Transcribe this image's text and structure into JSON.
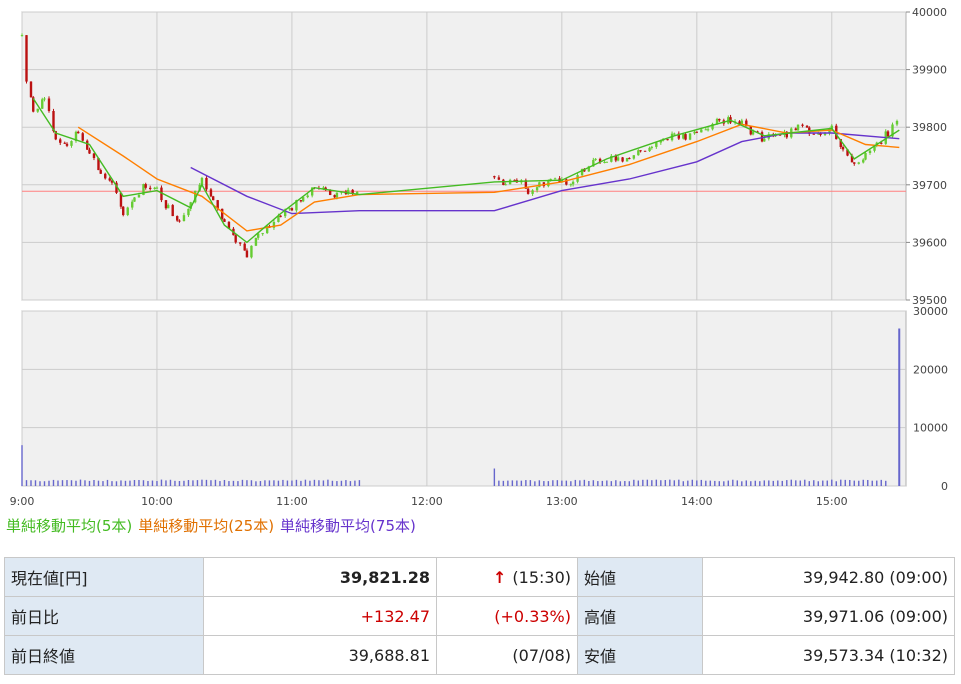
{
  "chart_data": [
    {
      "type": "candlestick-line",
      "y_range": [
        39500,
        40000
      ],
      "y_ticks": [
        "40000",
        "39900",
        "39800",
        "39700",
        "39600",
        "39500"
      ],
      "x_ticks": [
        "9:00",
        "10:00",
        "11:00",
        "12:00",
        "13:00",
        "14:00",
        "15:00"
      ],
      "reference_line": 39688.81,
      "price_path": [
        [
          "9:00",
          39960
        ],
        [
          "9:02",
          39880
        ],
        [
          "9:05",
          39830
        ],
        [
          "9:10",
          39850
        ],
        [
          "9:15",
          39780
        ],
        [
          "9:20",
          39770
        ],
        [
          "9:25",
          39790
        ],
        [
          "9:30",
          39760
        ],
        [
          "9:35",
          39720
        ],
        [
          "9:40",
          39700
        ],
        [
          "9:45",
          39650
        ],
        [
          "9:50",
          39680
        ],
        [
          "9:55",
          39700
        ],
        [
          "10:00",
          39690
        ],
        [
          "10:05",
          39660
        ],
        [
          "10:10",
          39640
        ],
        [
          "10:15",
          39670
        ],
        [
          "10:20",
          39710
        ],
        [
          "10:25",
          39680
        ],
        [
          "10:30",
          39630
        ],
        [
          "10:35",
          39600
        ],
        [
          "10:40",
          39580
        ],
        [
          "10:45",
          39610
        ],
        [
          "10:50",
          39630
        ],
        [
          "10:55",
          39650
        ],
        [
          "11:00",
          39660
        ],
        [
          "11:05",
          39680
        ],
        [
          "11:10",
          39700
        ],
        [
          "11:15",
          39690
        ],
        [
          "11:20",
          39680
        ],
        [
          "11:25",
          39690
        ],
        [
          "11:30",
          39680
        ],
        [
          "12:30",
          39710
        ],
        [
          "12:35",
          39700
        ],
        [
          "12:40",
          39710
        ],
        [
          "12:45",
          39690
        ],
        [
          "12:50",
          39700
        ],
        [
          "12:55",
          39710
        ],
        [
          "13:00",
          39710
        ],
        [
          "13:05",
          39700
        ],
        [
          "13:10",
          39730
        ],
        [
          "13:15",
          39750
        ],
        [
          "13:20",
          39740
        ],
        [
          "13:25",
          39750
        ],
        [
          "13:30",
          39740
        ],
        [
          "13:35",
          39760
        ],
        [
          "13:40",
          39770
        ],
        [
          "13:45",
          39780
        ],
        [
          "13:50",
          39790
        ],
        [
          "13:55",
          39780
        ],
        [
          "14:00",
          39790
        ],
        [
          "14:05",
          39800
        ],
        [
          "14:10",
          39810
        ],
        [
          "14:15",
          39815
        ],
        [
          "14:20",
          39810
        ],
        [
          "14:25",
          39790
        ],
        [
          "14:30",
          39780
        ],
        [
          "14:35",
          39790
        ],
        [
          "14:40",
          39785
        ],
        [
          "14:45",
          39800
        ],
        [
          "14:50",
          39795
        ],
        [
          "14:55",
          39790
        ],
        [
          "15:00",
          39800
        ],
        [
          "15:05",
          39760
        ],
        [
          "15:10",
          39740
        ],
        [
          "15:15",
          39750
        ],
        [
          "15:20",
          39770
        ],
        [
          "15:25",
          39790
        ],
        [
          "15:30",
          39821
        ]
      ],
      "ma5": [
        [
          "9:05",
          39850
        ],
        [
          "9:15",
          39790
        ],
        [
          "9:30",
          39770
        ],
        [
          "9:45",
          39680
        ],
        [
          "10:00",
          39690
        ],
        [
          "10:15",
          39660
        ],
        [
          "10:20",
          39700
        ],
        [
          "10:30",
          39630
        ],
        [
          "10:40",
          39600
        ],
        [
          "10:55",
          39650
        ],
        [
          "11:10",
          39695
        ],
        [
          "11:30",
          39683
        ],
        [
          "12:30",
          39705
        ],
        [
          "13:00",
          39708
        ],
        [
          "13:20",
          39745
        ],
        [
          "13:50",
          39785
        ],
        [
          "14:15",
          39812
        ],
        [
          "14:30",
          39785
        ],
        [
          "15:00",
          39798
        ],
        [
          "15:10",
          39745
        ],
        [
          "15:30",
          39795
        ]
      ],
      "ma25": [
        [
          "9:25",
          39800
        ],
        [
          "9:45",
          39750
        ],
        [
          "10:00",
          39710
        ],
        [
          "10:20",
          39680
        ],
        [
          "10:40",
          39620
        ],
        [
          "10:55",
          39630
        ],
        [
          "11:10",
          39670
        ],
        [
          "11:30",
          39683
        ],
        [
          "12:30",
          39687
        ],
        [
          "13:00",
          39705
        ],
        [
          "13:30",
          39735
        ],
        [
          "14:00",
          39775
        ],
        [
          "14:20",
          39805
        ],
        [
          "14:40",
          39790
        ],
        [
          "15:00",
          39795
        ],
        [
          "15:15",
          39770
        ],
        [
          "15:30",
          39765
        ]
      ],
      "ma75": [
        [
          "10:15",
          39730
        ],
        [
          "10:40",
          39680
        ],
        [
          "11:00",
          39650
        ],
        [
          "11:30",
          39655
        ],
        [
          "12:30",
          39655
        ],
        [
          "13:00",
          39690
        ],
        [
          "13:30",
          39710
        ],
        [
          "14:00",
          39740
        ],
        [
          "14:20",
          39775
        ],
        [
          "14:40",
          39790
        ],
        [
          "15:00",
          39790
        ],
        [
          "15:30",
          39780
        ]
      ],
      "colors": {
        "up": "#66cc33",
        "down": "#bb1111",
        "ma5": "#44bb22",
        "ma25": "#ff7f00",
        "ma75": "#6633cc",
        "reference": "#ff8080",
        "grid": "#cccccc",
        "panel": "#f0f0f0"
      }
    },
    {
      "type": "bar",
      "y_range": [
        0,
        30000
      ],
      "y_ticks": [
        "30000",
        "20000",
        "10000",
        "0"
      ],
      "volume_spikes": [
        [
          "9:00",
          7000
        ],
        [
          "10:15",
          1200
        ],
        [
          "12:30",
          3000
        ],
        [
          "15:30",
          27000
        ]
      ],
      "volume_base": 800,
      "color": "#6666cc"
    }
  ],
  "legend": {
    "ma5": "単純移動平均(5本)",
    "ma25": "単純移動平均(25本)",
    "ma75": "単純移動平均(75本)"
  },
  "quote": {
    "current_label": "現在値[円]",
    "current_value": "39,821.28",
    "current_arrow": "↑",
    "current_time": "(15:30)",
    "open_label": "始値",
    "open_value": "39,942.80 (09:00)",
    "change_label": "前日比",
    "change_value": "+132.47",
    "change_pct": "(+0.33%)",
    "high_label": "高値",
    "high_value": "39,971.06 (09:00)",
    "prev_close_label": "前日終値",
    "prev_close_value": "39,688.81",
    "prev_close_date": "(07/08)",
    "low_label": "安値",
    "low_value": "39,573.34 (10:32)"
  }
}
